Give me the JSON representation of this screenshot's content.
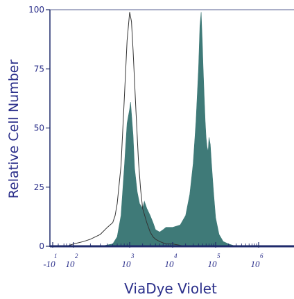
{
  "chart_data": {
    "type": "area",
    "title": "",
    "xlabel": "ViaDye Violet",
    "ylabel": "Relative Cell Number",
    "x_scale": "biexponential",
    "xlim": [
      -20,
      1500000
    ],
    "ylim": [
      0,
      100
    ],
    "y_ticks": [
      {
        "value": 0,
        "label": "0"
      },
      {
        "value": 25,
        "label": "25"
      },
      {
        "value": 50,
        "label": "50"
      },
      {
        "value": 75,
        "label": "75"
      },
      {
        "value": 100,
        "label": "100"
      }
    ],
    "x_ticks": [
      {
        "value": -10,
        "base": "-10",
        "exp": "1"
      },
      {
        "value": 100,
        "base": "10",
        "exp": "2"
      },
      {
        "value": 1000,
        "base": "10",
        "exp": "3"
      },
      {
        "value": 10000,
        "base": "10",
        "exp": "4"
      },
      {
        "value": 100000,
        "base": "10",
        "exp": "5"
      },
      {
        "value": 1000000,
        "base": "10",
        "exp": "6"
      }
    ],
    "colors": {
      "axis": "#1f2a6b",
      "label": "#2a2e8a",
      "filled": "#3f7a78",
      "outline": "#333333"
    },
    "series": [
      {
        "style": "outline",
        "x": [
          -20,
          10,
          50,
          100,
          150,
          200,
          300,
          400,
          500,
          550,
          600,
          700,
          800,
          900,
          1000,
          1100,
          1200,
          1400,
          1600,
          1800,
          2000,
          2500,
          3000,
          3500,
          4000,
          5000,
          7000,
          10000,
          20000,
          1500000
        ],
        "y": [
          0,
          0,
          0,
          1,
          2,
          3,
          5,
          8,
          10,
          13,
          18,
          34,
          62,
          87,
          99,
          95,
          83,
          57,
          36,
          24,
          16,
          10,
          6,
          4,
          3,
          2,
          1,
          1,
          0,
          0
        ]
      },
      {
        "style": "filled",
        "x": [
          -20,
          100,
          300,
          500,
          600,
          700,
          800,
          900,
          1000,
          1050,
          1100,
          1200,
          1300,
          1500,
          1700,
          2000,
          2200,
          2500,
          3000,
          3500,
          4000,
          5000,
          6000,
          7000,
          10000,
          15000,
          20000,
          25000,
          30000,
          35000,
          40000,
          43000,
          46000,
          49000,
          51000,
          54000,
          57000,
          60000,
          63000,
          67000,
          70000,
          75000,
          80000,
          90000,
          100000,
          120000,
          150000,
          200000,
          300000,
          1500000
        ],
        "y": [
          0,
          0,
          0,
          1,
          4,
          13,
          33,
          52,
          58,
          61,
          56,
          47,
          33,
          23,
          18,
          16,
          19,
          16,
          13,
          10,
          7,
          6,
          7,
          8,
          8,
          9,
          13,
          22,
          35,
          53,
          75,
          93,
          99,
          86,
          76,
          64,
          53,
          46,
          42,
          40,
          46,
          43,
          35,
          22,
          12,
          5,
          2,
          1,
          0,
          0
        ]
      }
    ]
  }
}
